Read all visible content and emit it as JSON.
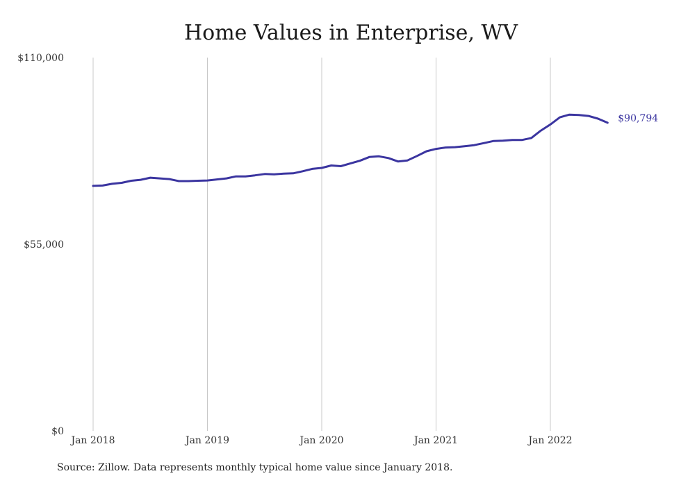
{
  "colors": {
    "line": "#3b35a0",
    "grid": "#c8c8c8",
    "text": "#333333"
  },
  "chart_data": {
    "type": "line",
    "title": "Home Values in Enterprise, WV",
    "xlabel": "",
    "ylabel": "",
    "ylim": [
      0,
      110000
    ],
    "y_ticks": [
      {
        "value": 0,
        "label": "$0"
      },
      {
        "value": 55000,
        "label": "$55,000"
      },
      {
        "value": 110000,
        "label": "$110,000"
      }
    ],
    "x_ticks": [
      {
        "value": "2018-01",
        "label": "Jan 2018"
      },
      {
        "value": "2019-01",
        "label": "Jan 2019"
      },
      {
        "value": "2020-01",
        "label": "Jan 2020"
      },
      {
        "value": "2021-01",
        "label": "Jan 2021"
      },
      {
        "value": "2022-01",
        "label": "Jan 2022"
      }
    ],
    "grid": {
      "vertical": true,
      "horizontal": false
    },
    "series": [
      {
        "x": [
          "2018-01",
          "2018-02",
          "2018-03",
          "2018-04",
          "2018-05",
          "2018-06",
          "2018-07",
          "2018-08",
          "2018-09",
          "2018-10",
          "2018-11",
          "2018-12",
          "2019-01",
          "2019-02",
          "2019-03",
          "2019-04",
          "2019-05",
          "2019-06",
          "2019-07",
          "2019-08",
          "2019-09",
          "2019-10",
          "2019-11",
          "2019-12",
          "2020-01",
          "2020-02",
          "2020-03",
          "2020-04",
          "2020-05",
          "2020-06",
          "2020-07",
          "2020-08",
          "2020-09",
          "2020-10",
          "2020-11",
          "2020-12",
          "2021-01",
          "2021-02",
          "2021-03",
          "2021-04",
          "2021-05",
          "2021-06",
          "2021-07",
          "2021-08",
          "2021-09",
          "2021-10",
          "2021-11",
          "2021-12",
          "2022-01",
          "2022-02",
          "2022-03",
          "2022-04",
          "2022-05",
          "2022-06",
          "2022-07"
        ],
        "values": [
          72200,
          72300,
          72800,
          73100,
          73700,
          74000,
          74600,
          74400,
          74200,
          73600,
          73600,
          73700,
          73800,
          74100,
          74400,
          75000,
          75000,
          75300,
          75700,
          75600,
          75800,
          75900,
          76500,
          77200,
          77500,
          78200,
          78000,
          78800,
          79600,
          80700,
          80900,
          80400,
          79400,
          79700,
          81000,
          82400,
          83100,
          83500,
          83600,
          83900,
          84200,
          84800,
          85400,
          85500,
          85700,
          85700,
          86300,
          88500,
          90300,
          92400,
          93200,
          93100,
          92800,
          92000,
          90794
        ]
      }
    ],
    "end_label": "$90,794",
    "source_note": "Source: Zillow. Data represents monthly typical home value since January 2018."
  }
}
